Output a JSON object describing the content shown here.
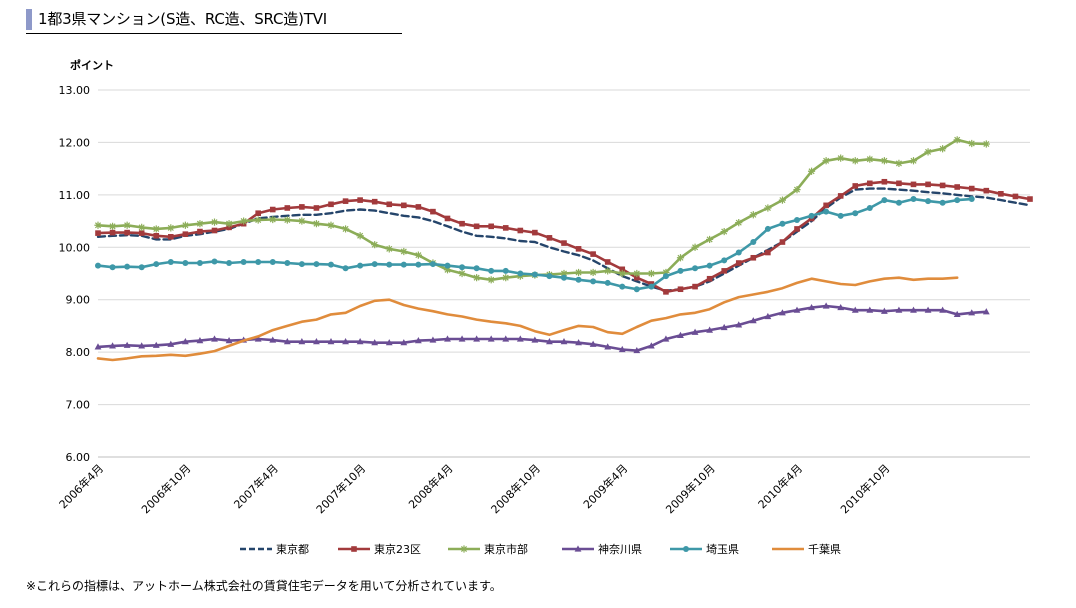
{
  "page": {
    "title": "1都3県マンション(S造、RC造、SRC造)TVI",
    "footnote": "※これらの指標は、アットホーム株式会社の賃貸住宅データを用いて分析されています。"
  },
  "colors": {
    "title_accent": "#8e99c9",
    "grid": "#d9d9d9"
  },
  "chart_data": {
    "type": "line",
    "ylabel": "ポイント",
    "ylim": [
      6,
      13
    ],
    "y_ticks": [
      "13.00",
      "12.00",
      "11.00",
      "10.00",
      "9.00",
      "8.00",
      "7.00",
      "6.00"
    ],
    "grid": true,
    "legend_position": "bottom",
    "x_tick_labels": [
      "2006年4月",
      "2006年10月",
      "2007年4月",
      "2007年10月",
      "2008年4月",
      "2008年10月",
      "2009年4月",
      "2009年10月",
      "2010年4月",
      "2010年10月"
    ],
    "x_tick_every": 6,
    "series": [
      {
        "name": "東京都",
        "color": "#25456b",
        "dash": true,
        "marker": "none",
        "values": [
          10.2,
          10.22,
          10.23,
          10.22,
          10.15,
          10.15,
          10.22,
          10.25,
          10.3,
          10.35,
          10.45,
          10.55,
          10.58,
          10.6,
          10.62,
          10.62,
          10.65,
          10.7,
          10.72,
          10.7,
          10.65,
          10.6,
          10.57,
          10.5,
          10.4,
          10.3,
          10.22,
          10.2,
          10.17,
          10.12,
          10.1,
          10.0,
          9.92,
          9.85,
          9.75,
          9.6,
          9.45,
          9.35,
          9.25,
          9.17,
          9.2,
          9.25,
          9.35,
          9.5,
          9.65,
          9.8,
          9.95,
          10.1,
          10.3,
          10.5,
          10.75,
          10.95,
          11.1,
          11.12,
          11.12,
          11.1,
          11.08,
          11.05,
          11.03,
          11.0,
          10.97,
          10.95,
          10.9,
          10.85,
          10.8
        ]
      },
      {
        "name": "東京23区",
        "color": "#a23a3c",
        "dash": false,
        "marker": "square",
        "values": [
          10.27,
          10.28,
          10.28,
          10.27,
          10.22,
          10.2,
          10.25,
          10.3,
          10.32,
          10.38,
          10.45,
          10.65,
          10.72,
          10.75,
          10.77,
          10.75,
          10.82,
          10.88,
          10.9,
          10.87,
          10.82,
          10.8,
          10.77,
          10.68,
          10.55,
          10.45,
          10.4,
          10.4,
          10.37,
          10.32,
          10.28,
          10.18,
          10.08,
          9.97,
          9.87,
          9.72,
          9.58,
          9.42,
          9.3,
          9.15,
          9.2,
          9.25,
          9.4,
          9.55,
          9.7,
          9.8,
          9.9,
          10.1,
          10.35,
          10.55,
          10.8,
          10.98,
          11.17,
          11.22,
          11.25,
          11.22,
          11.2,
          11.2,
          11.18,
          11.15,
          11.12,
          11.08,
          11.02,
          10.97,
          10.92
        ]
      },
      {
        "name": "東京市部",
        "color": "#8cad58",
        "dash": false,
        "marker": "star",
        "values": [
          10.42,
          10.4,
          10.42,
          10.38,
          10.35,
          10.37,
          10.42,
          10.45,
          10.48,
          10.45,
          10.5,
          10.52,
          10.53,
          10.52,
          10.5,
          10.45,
          10.42,
          10.35,
          10.22,
          10.05,
          9.97,
          9.92,
          9.85,
          9.7,
          9.57,
          9.5,
          9.42,
          9.38,
          9.42,
          9.45,
          9.47,
          9.48,
          9.5,
          9.52,
          9.52,
          9.55,
          9.5,
          9.5,
          9.5,
          9.52,
          9.8,
          10.0,
          10.15,
          10.3,
          10.47,
          10.62,
          10.75,
          10.9,
          11.1,
          11.45,
          11.65,
          11.7,
          11.65,
          11.68,
          11.65,
          11.6,
          11.65,
          11.82,
          11.88,
          12.05,
          11.98,
          11.97
        ]
      },
      {
        "name": "神奈川県",
        "color": "#6a4d94",
        "dash": false,
        "marker": "triangle",
        "values": [
          8.1,
          8.12,
          8.13,
          8.12,
          8.13,
          8.15,
          8.2,
          8.22,
          8.25,
          8.22,
          8.23,
          8.25,
          8.23,
          8.2,
          8.2,
          8.2,
          8.2,
          8.2,
          8.2,
          8.18,
          8.18,
          8.18,
          8.22,
          8.23,
          8.25,
          8.25,
          8.25,
          8.25,
          8.25,
          8.25,
          8.23,
          8.2,
          8.2,
          8.18,
          8.15,
          8.1,
          8.05,
          8.03,
          8.12,
          8.25,
          8.32,
          8.38,
          8.42,
          8.47,
          8.52,
          8.6,
          8.68,
          8.75,
          8.8,
          8.85,
          8.88,
          8.85,
          8.8,
          8.8,
          8.78,
          8.8,
          8.8,
          8.8,
          8.8,
          8.72,
          8.75,
          8.77
        ]
      },
      {
        "name": "埼玉県",
        "color": "#3e98a8",
        "dash": false,
        "marker": "circle",
        "values": [
          9.65,
          9.62,
          9.63,
          9.62,
          9.68,
          9.72,
          9.7,
          9.7,
          9.73,
          9.7,
          9.72,
          9.72,
          9.72,
          9.7,
          9.68,
          9.68,
          9.67,
          9.6,
          9.65,
          9.68,
          9.67,
          9.67,
          9.67,
          9.68,
          9.65,
          9.62,
          9.6,
          9.55,
          9.55,
          9.5,
          9.48,
          9.45,
          9.42,
          9.38,
          9.35,
          9.32,
          9.25,
          9.2,
          9.25,
          9.45,
          9.55,
          9.6,
          9.65,
          9.75,
          9.9,
          10.1,
          10.35,
          10.45,
          10.52,
          10.6,
          10.68,
          10.6,
          10.65,
          10.75,
          10.9,
          10.85,
          10.92,
          10.88,
          10.85,
          10.9,
          10.92
        ]
      },
      {
        "name": "千葉県",
        "color": "#e08c3c",
        "dash": false,
        "marker": "none",
        "values": [
          7.88,
          7.85,
          7.88,
          7.92,
          7.93,
          7.95,
          7.93,
          7.97,
          8.02,
          8.12,
          8.22,
          8.3,
          8.42,
          8.5,
          8.58,
          8.62,
          8.72,
          8.75,
          8.88,
          8.98,
          9.0,
          8.9,
          8.83,
          8.78,
          8.72,
          8.68,
          8.62,
          8.58,
          8.55,
          8.5,
          8.4,
          8.33,
          8.42,
          8.5,
          8.48,
          8.38,
          8.35,
          8.48,
          8.6,
          8.65,
          8.72,
          8.75,
          8.82,
          8.95,
          9.05,
          9.1,
          9.15,
          9.22,
          9.32,
          9.4,
          9.35,
          9.3,
          9.28,
          9.35,
          9.4,
          9.42,
          9.38,
          9.4,
          9.4,
          9.42
        ]
      }
    ]
  }
}
